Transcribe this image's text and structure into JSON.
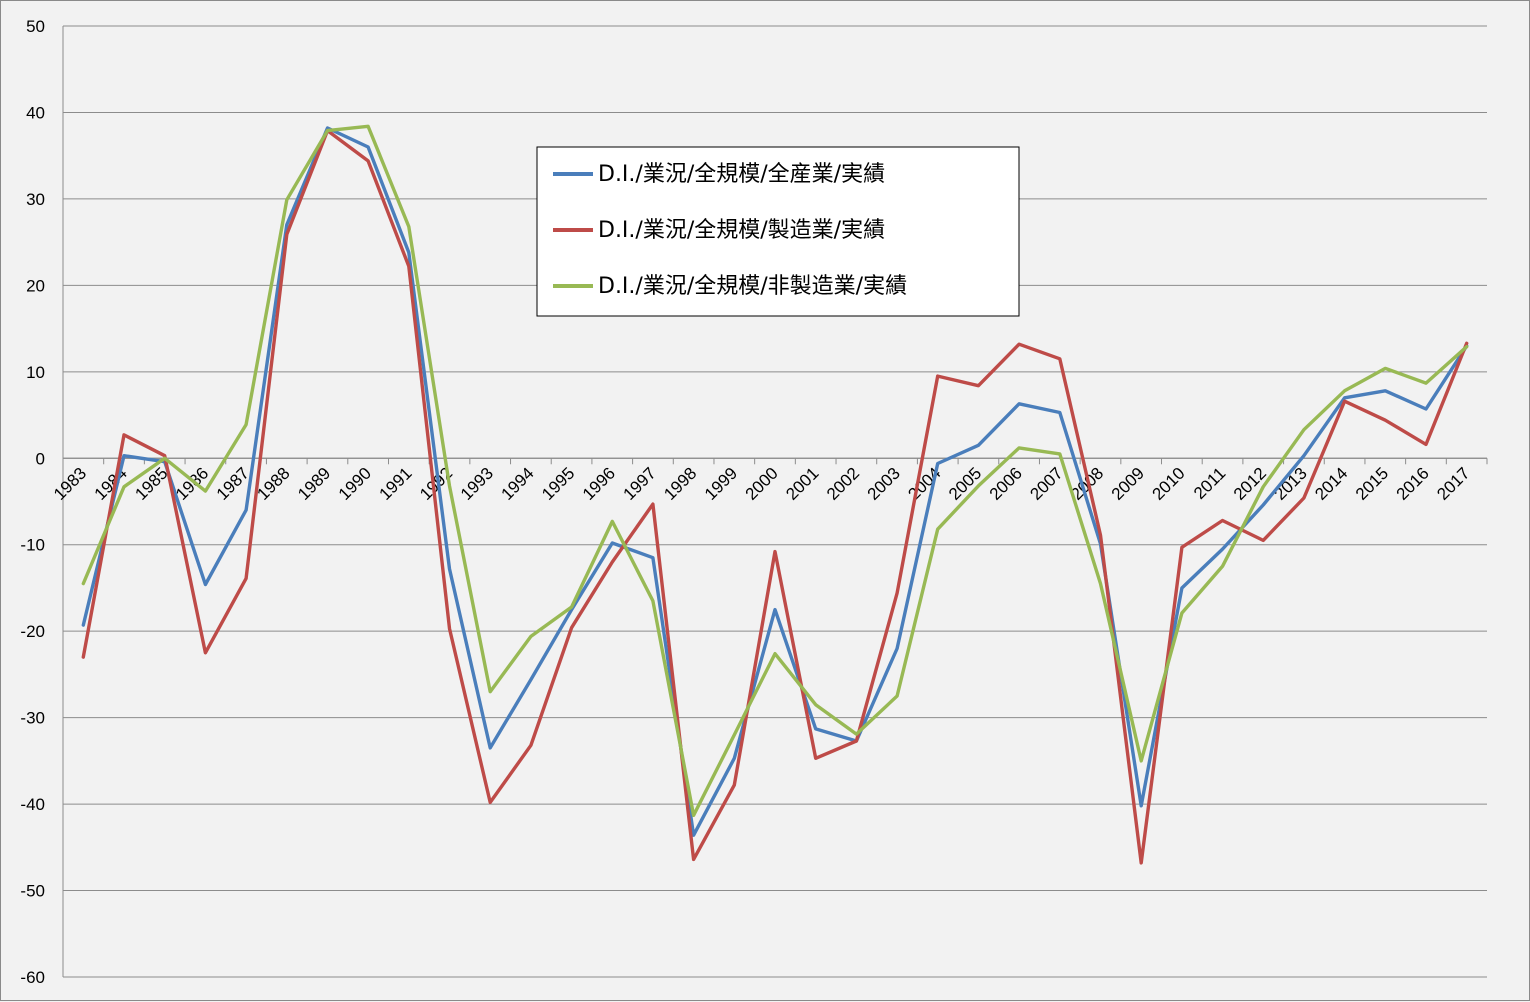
{
  "chart_data": {
    "type": "line",
    "title": "",
    "xlabel": "",
    "ylabel": "",
    "ylim": [
      -60,
      50
    ],
    "yticks": [
      50,
      40,
      30,
      20,
      10,
      0,
      -10,
      -20,
      -30,
      -40,
      -50,
      -60
    ],
    "grid": true,
    "legend_position": "upper-center",
    "x": [
      "1983",
      "1984",
      "1985",
      "1986",
      "1987",
      "1988",
      "1989",
      "1990",
      "1991",
      "1992",
      "1993",
      "1994",
      "1995",
      "1996",
      "1997",
      "1998",
      "1999",
      "2000",
      "2001",
      "2002",
      "2003",
      "2004",
      "2005",
      "2006",
      "2007",
      "2008",
      "2009",
      "2010",
      "2011",
      "2012",
      "2013",
      "2014",
      "2015",
      "2016",
      "2017"
    ],
    "series": [
      {
        "name": "D.I./業況/全規模/全産業/実績",
        "color": "#4a7ebb",
        "values": [
          -19.3,
          0.3,
          -0.4,
          -14.6,
          -6.0,
          27.0,
          38.2,
          36.0,
          23.8,
          -12.8,
          -33.5,
          -25.6,
          -17.5,
          -9.8,
          -11.5,
          -43.6,
          -34.7,
          -17.5,
          -31.3,
          -32.7,
          -22.0,
          -0.6,
          1.5,
          6.3,
          5.3,
          -9.9,
          -40.2,
          -15.0,
          -10.5,
          -5.4,
          0.3,
          7.0,
          7.8,
          5.7,
          13.0
        ]
      },
      {
        "name": "D.I./業況/全規模/製造業/実績",
        "color": "#be4b48",
        "values": [
          -23.0,
          2.7,
          0.3,
          -22.5,
          -13.9,
          25.9,
          37.9,
          34.4,
          22.2,
          -19.7,
          -39.8,
          -33.2,
          -19.6,
          -12.0,
          -5.3,
          -46.4,
          -37.8,
          -10.8,
          -34.7,
          -32.7,
          -15.6,
          9.5,
          8.4,
          13.2,
          11.5,
          -8.9,
          -46.8,
          -10.3,
          -7.2,
          -9.5,
          -4.6,
          6.6,
          4.4,
          1.6,
          13.3
        ]
      },
      {
        "name": "D.I./業況/全規模/非製造業/実績",
        "color": "#98b954",
        "values": [
          -14.5,
          -3.3,
          0.0,
          -3.8,
          3.9,
          29.9,
          37.9,
          38.4,
          26.8,
          -3.2,
          -27.0,
          -20.6,
          -17.2,
          -7.3,
          -16.5,
          -41.3,
          -32.0,
          -22.6,
          -28.5,
          -31.9,
          -27.5,
          -8.2,
          -3.2,
          1.2,
          0.5,
          -14.5,
          -35.0,
          -17.9,
          -12.5,
          -3.3,
          3.3,
          7.8,
          10.4,
          8.7,
          12.9
        ]
      }
    ]
  }
}
